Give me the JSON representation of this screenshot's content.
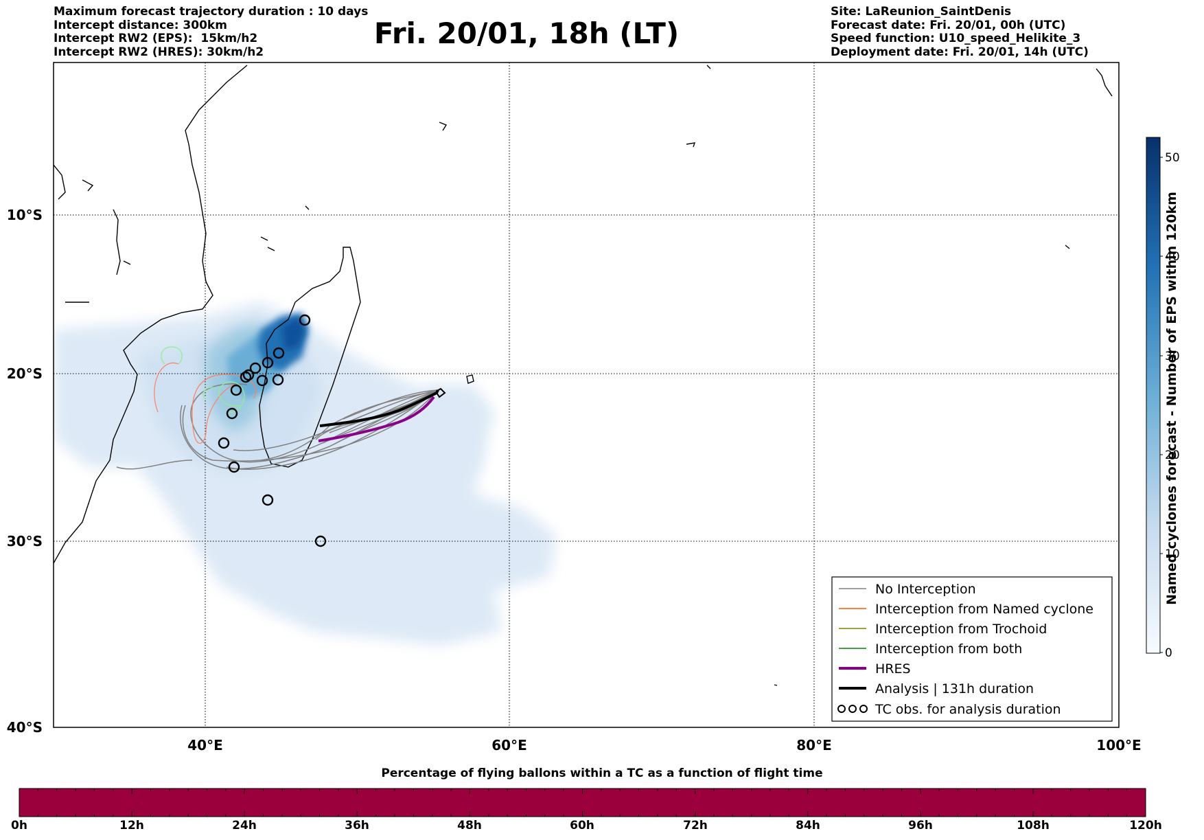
{
  "header_left": {
    "line1": "Maximum forecast trajectory duration : 10 days",
    "line2": "Intercept distance: 300km",
    "line3": "Intercept RW2 (EPS):  15km/h2",
    "line4": "Intercept RW2 (HRES): 30km/h2"
  },
  "title": "Fri. 20/01, 18h (LT)",
  "header_right": {
    "line1": "Site: LaReunion_SaintDenis",
    "line2": "Forecast date: Fri. 20/01, 00h (UTC)",
    "line3": "Speed function: U10_speed_Helikite_3",
    "line4": "Deployment date: Fri. 20/01, 14h (UTC)"
  },
  "map": {
    "lon_range": [
      30,
      100
    ],
    "lat_range": [
      -40,
      -0.3
    ],
    "lon_ticks": [
      "40°E",
      "60°E",
      "80°E",
      "100°E"
    ],
    "lat_ticks": [
      "10°S",
      "20°S",
      "30°S",
      "40°S"
    ],
    "grid": true
  },
  "colorbar_right": {
    "label": "Named cyclones forecast - Number of EPS within 120km",
    "ticks": [
      "0",
      "10",
      "20",
      "30",
      "40",
      "50"
    ],
    "colors": [
      "#f7fbff",
      "#c6dbef",
      "#6baed6",
      "#2171b5",
      "#08306b"
    ]
  },
  "legend": {
    "items": [
      {
        "label": "No Interception",
        "color": "#808080"
      },
      {
        "label": "Interception from Named cyclone",
        "color": "#ff5500"
      },
      {
        "label": "Interception from Trochoid",
        "color": "#808000"
      },
      {
        "label": "Interception from both",
        "color": "#008000"
      },
      {
        "label": "HRES",
        "color": "#8b008b"
      },
      {
        "label": "Analysis | 131h duration",
        "color": "#000000"
      },
      {
        "label": "TC obs. for analysis duration",
        "color": "#000000"
      }
    ]
  },
  "bottom_bar": {
    "title": "Percentage of flying ballons within a TC as a function of flight time",
    "color": "#9b003c",
    "ticks": [
      "0h",
      "12h",
      "24h",
      "36h",
      "48h",
      "60h",
      "72h",
      "84h",
      "96h",
      "108h",
      "120h"
    ]
  }
}
